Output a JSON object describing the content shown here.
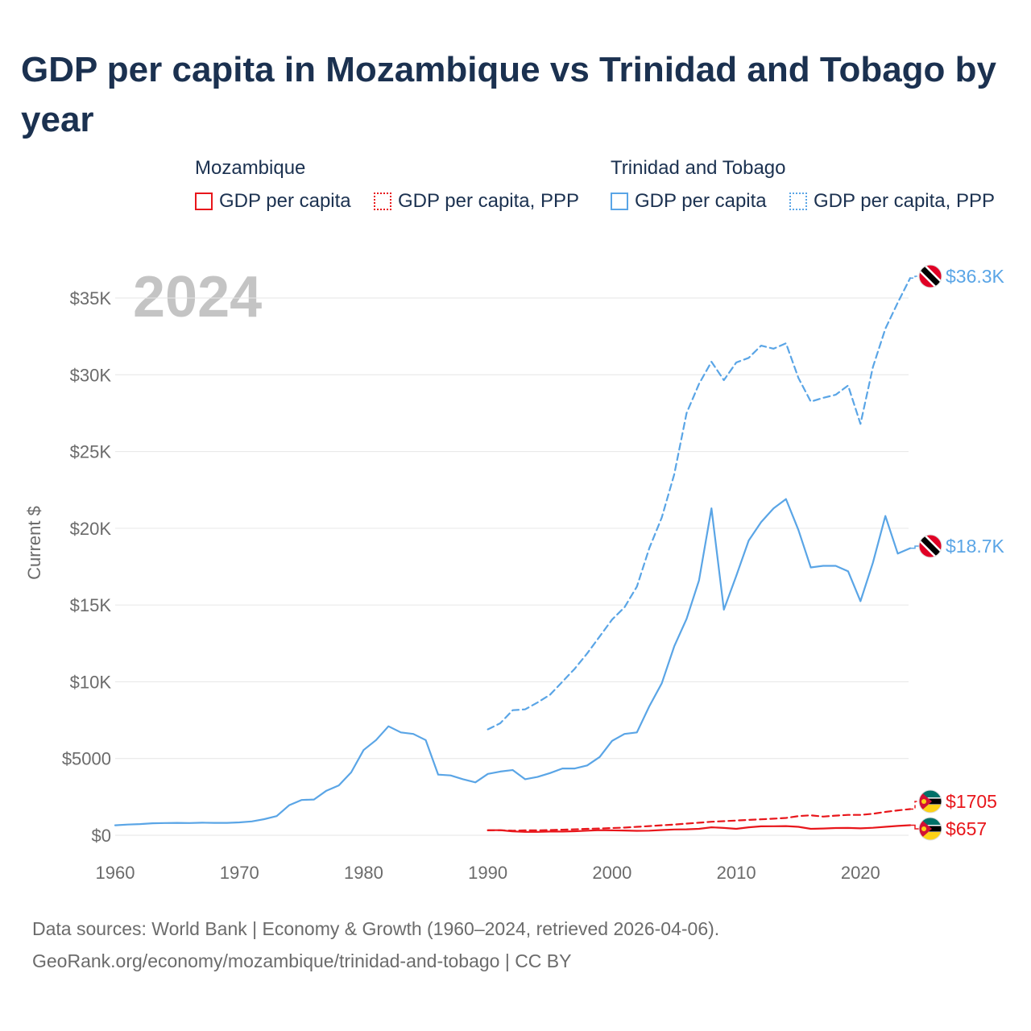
{
  "title": "GDP per capita in Mozambique vs Trinidad and Tobago by year",
  "legend": {
    "groups": [
      {
        "country": "Mozambique",
        "color": "#e8161b",
        "items": [
          {
            "label": "GDP per capita",
            "style": "solid"
          },
          {
            "label": "GDP per capita, PPP",
            "style": "dotted"
          }
        ]
      },
      {
        "country": "Trinidad and Tobago",
        "color": "#5aa5e6",
        "items": [
          {
            "label": "GDP per capita",
            "style": "solid"
          },
          {
            "label": "GDP per capita, PPP",
            "style": "dotted"
          }
        ]
      }
    ]
  },
  "footer": {
    "line1": "Data sources: World Bank | Economy & Growth (1960–2024, retrieved 2026-04-06).",
    "line2": "GeoRank.org/economy/mozambique/trinidad-and-tobago | CC BY"
  },
  "chart_data": {
    "type": "line",
    "title": "GDP per capita in Mozambique vs Trinidad and Tobago by year",
    "year_label": "2024",
    "ylabel": "Current $",
    "xlabel": "",
    "xlim": [
      1960,
      2024
    ],
    "ylim": [
      0,
      36500
    ],
    "x_ticks": [
      1960,
      1970,
      1980,
      1990,
      2000,
      2010,
      2020
    ],
    "y_ticks": [
      {
        "value": 0,
        "label": "$0"
      },
      {
        "value": 5000,
        "label": "$5000"
      },
      {
        "value": 10000,
        "label": "$10K"
      },
      {
        "value": 15000,
        "label": "$15K"
      },
      {
        "value": 20000,
        "label": "$20K"
      },
      {
        "value": 25000,
        "label": "$25K"
      },
      {
        "value": 30000,
        "label": "$30K"
      },
      {
        "value": 35000,
        "label": "$35K"
      }
    ],
    "series": [
      {
        "name": "Trinidad and Tobago GDP per capita",
        "country": "Trinidad and Tobago",
        "color": "#5aa5e6",
        "dash": "solid",
        "end_label": "$18.7K",
        "flag": "trinidad-and-tobago",
        "x": [
          1960,
          1961,
          1962,
          1963,
          1964,
          1965,
          1966,
          1967,
          1968,
          1969,
          1970,
          1971,
          1972,
          1973,
          1974,
          1975,
          1976,
          1977,
          1978,
          1979,
          1980,
          1981,
          1982,
          1983,
          1984,
          1985,
          1986,
          1987,
          1988,
          1989,
          1990,
          1991,
          1992,
          1993,
          1994,
          1995,
          1996,
          1997,
          1998,
          1999,
          2000,
          2001,
          2002,
          2003,
          2004,
          2005,
          2006,
          2007,
          2008,
          2009,
          2010,
          2011,
          2012,
          2013,
          2014,
          2015,
          2016,
          2017,
          2018,
          2019,
          2020,
          2021,
          2022,
          2023,
          2024
        ],
        "values": [
          650,
          700,
          730,
          780,
          800,
          810,
          800,
          820,
          810,
          810,
          840,
          900,
          1050,
          1250,
          1950,
          2300,
          2330,
          2900,
          3250,
          4100,
          5550,
          6200,
          7100,
          6700,
          6600,
          6200,
          3950,
          3900,
          3650,
          3450,
          4000,
          4150,
          4250,
          3650,
          3800,
          4050,
          4350,
          4350,
          4550,
          5100,
          6150,
          6600,
          6700,
          8400,
          9900,
          12300,
          14100,
          16600,
          21300,
          14700,
          16900,
          19200,
          20400,
          21300,
          21900,
          19900,
          17450,
          17550,
          17550,
          17200,
          15250,
          17750,
          20800,
          18350,
          18700
        ]
      },
      {
        "name": "Trinidad and Tobago GDP per capita, PPP",
        "country": "Trinidad and Tobago",
        "color": "#5aa5e6",
        "dash": "dashed",
        "end_label": "$36.3K",
        "flag": "trinidad-and-tobago",
        "x": [
          1990,
          1991,
          1992,
          1993,
          1994,
          1995,
          1996,
          1997,
          1998,
          1999,
          2000,
          2001,
          2002,
          2003,
          2004,
          2005,
          2006,
          2007,
          2008,
          2009,
          2010,
          2011,
          2012,
          2013,
          2014,
          2015,
          2016,
          2017,
          2018,
          2019,
          2020,
          2021,
          2022,
          2023,
          2024
        ],
        "values": [
          6900,
          7300,
          8150,
          8200,
          8650,
          9150,
          10000,
          10850,
          11850,
          12950,
          14050,
          14850,
          16200,
          18700,
          20700,
          23500,
          27500,
          29400,
          30850,
          29650,
          30800,
          31100,
          31900,
          31700,
          32050,
          29800,
          28250,
          28500,
          28700,
          29300,
          26800,
          30500,
          33000,
          34700,
          36300
        ]
      },
      {
        "name": "Mozambique GDP per capita",
        "country": "Mozambique",
        "color": "#e8161b",
        "dash": "solid",
        "end_label": "$657",
        "flag": "mozambique",
        "x": [
          1990,
          1991,
          1992,
          1993,
          1994,
          1995,
          1996,
          1997,
          1998,
          1999,
          2000,
          2001,
          2002,
          2003,
          2004,
          2005,
          2006,
          2007,
          2008,
          2009,
          2010,
          2011,
          2012,
          2013,
          2014,
          2015,
          2016,
          2017,
          2018,
          2019,
          2020,
          2021,
          2022,
          2023,
          2024
        ],
        "values": [
          330,
          330,
          250,
          220,
          220,
          240,
          240,
          260,
          300,
          330,
          320,
          310,
          290,
          300,
          340,
          380,
          390,
          420,
          520,
          480,
          420,
          520,
          580,
          590,
          600,
          550,
          420,
          440,
          470,
          480,
          450,
          490,
          550,
          610,
          657
        ]
      },
      {
        "name": "Mozambique GDP per capita, PPP",
        "country": "Mozambique",
        "color": "#e8161b",
        "dash": "dashed",
        "end_label": "$1705",
        "flag": "mozambique",
        "x": [
          1990,
          1991,
          1992,
          1993,
          1994,
          1995,
          1996,
          1997,
          1998,
          1999,
          2000,
          2001,
          2002,
          2003,
          2004,
          2005,
          2006,
          2007,
          2008,
          2009,
          2010,
          2011,
          2012,
          2013,
          2014,
          2015,
          2016,
          2017,
          2018,
          2019,
          2020,
          2021,
          2022,
          2023,
          2024
        ],
        "values": [
          320,
          330,
          300,
          320,
          320,
          340,
          360,
          390,
          420,
          440,
          470,
          500,
          550,
          600,
          650,
          700,
          760,
          820,
          880,
          920,
          960,
          1000,
          1040,
          1080,
          1130,
          1250,
          1300,
          1220,
          1280,
          1330,
          1330,
          1400,
          1520,
          1620,
          1705
        ]
      }
    ]
  }
}
